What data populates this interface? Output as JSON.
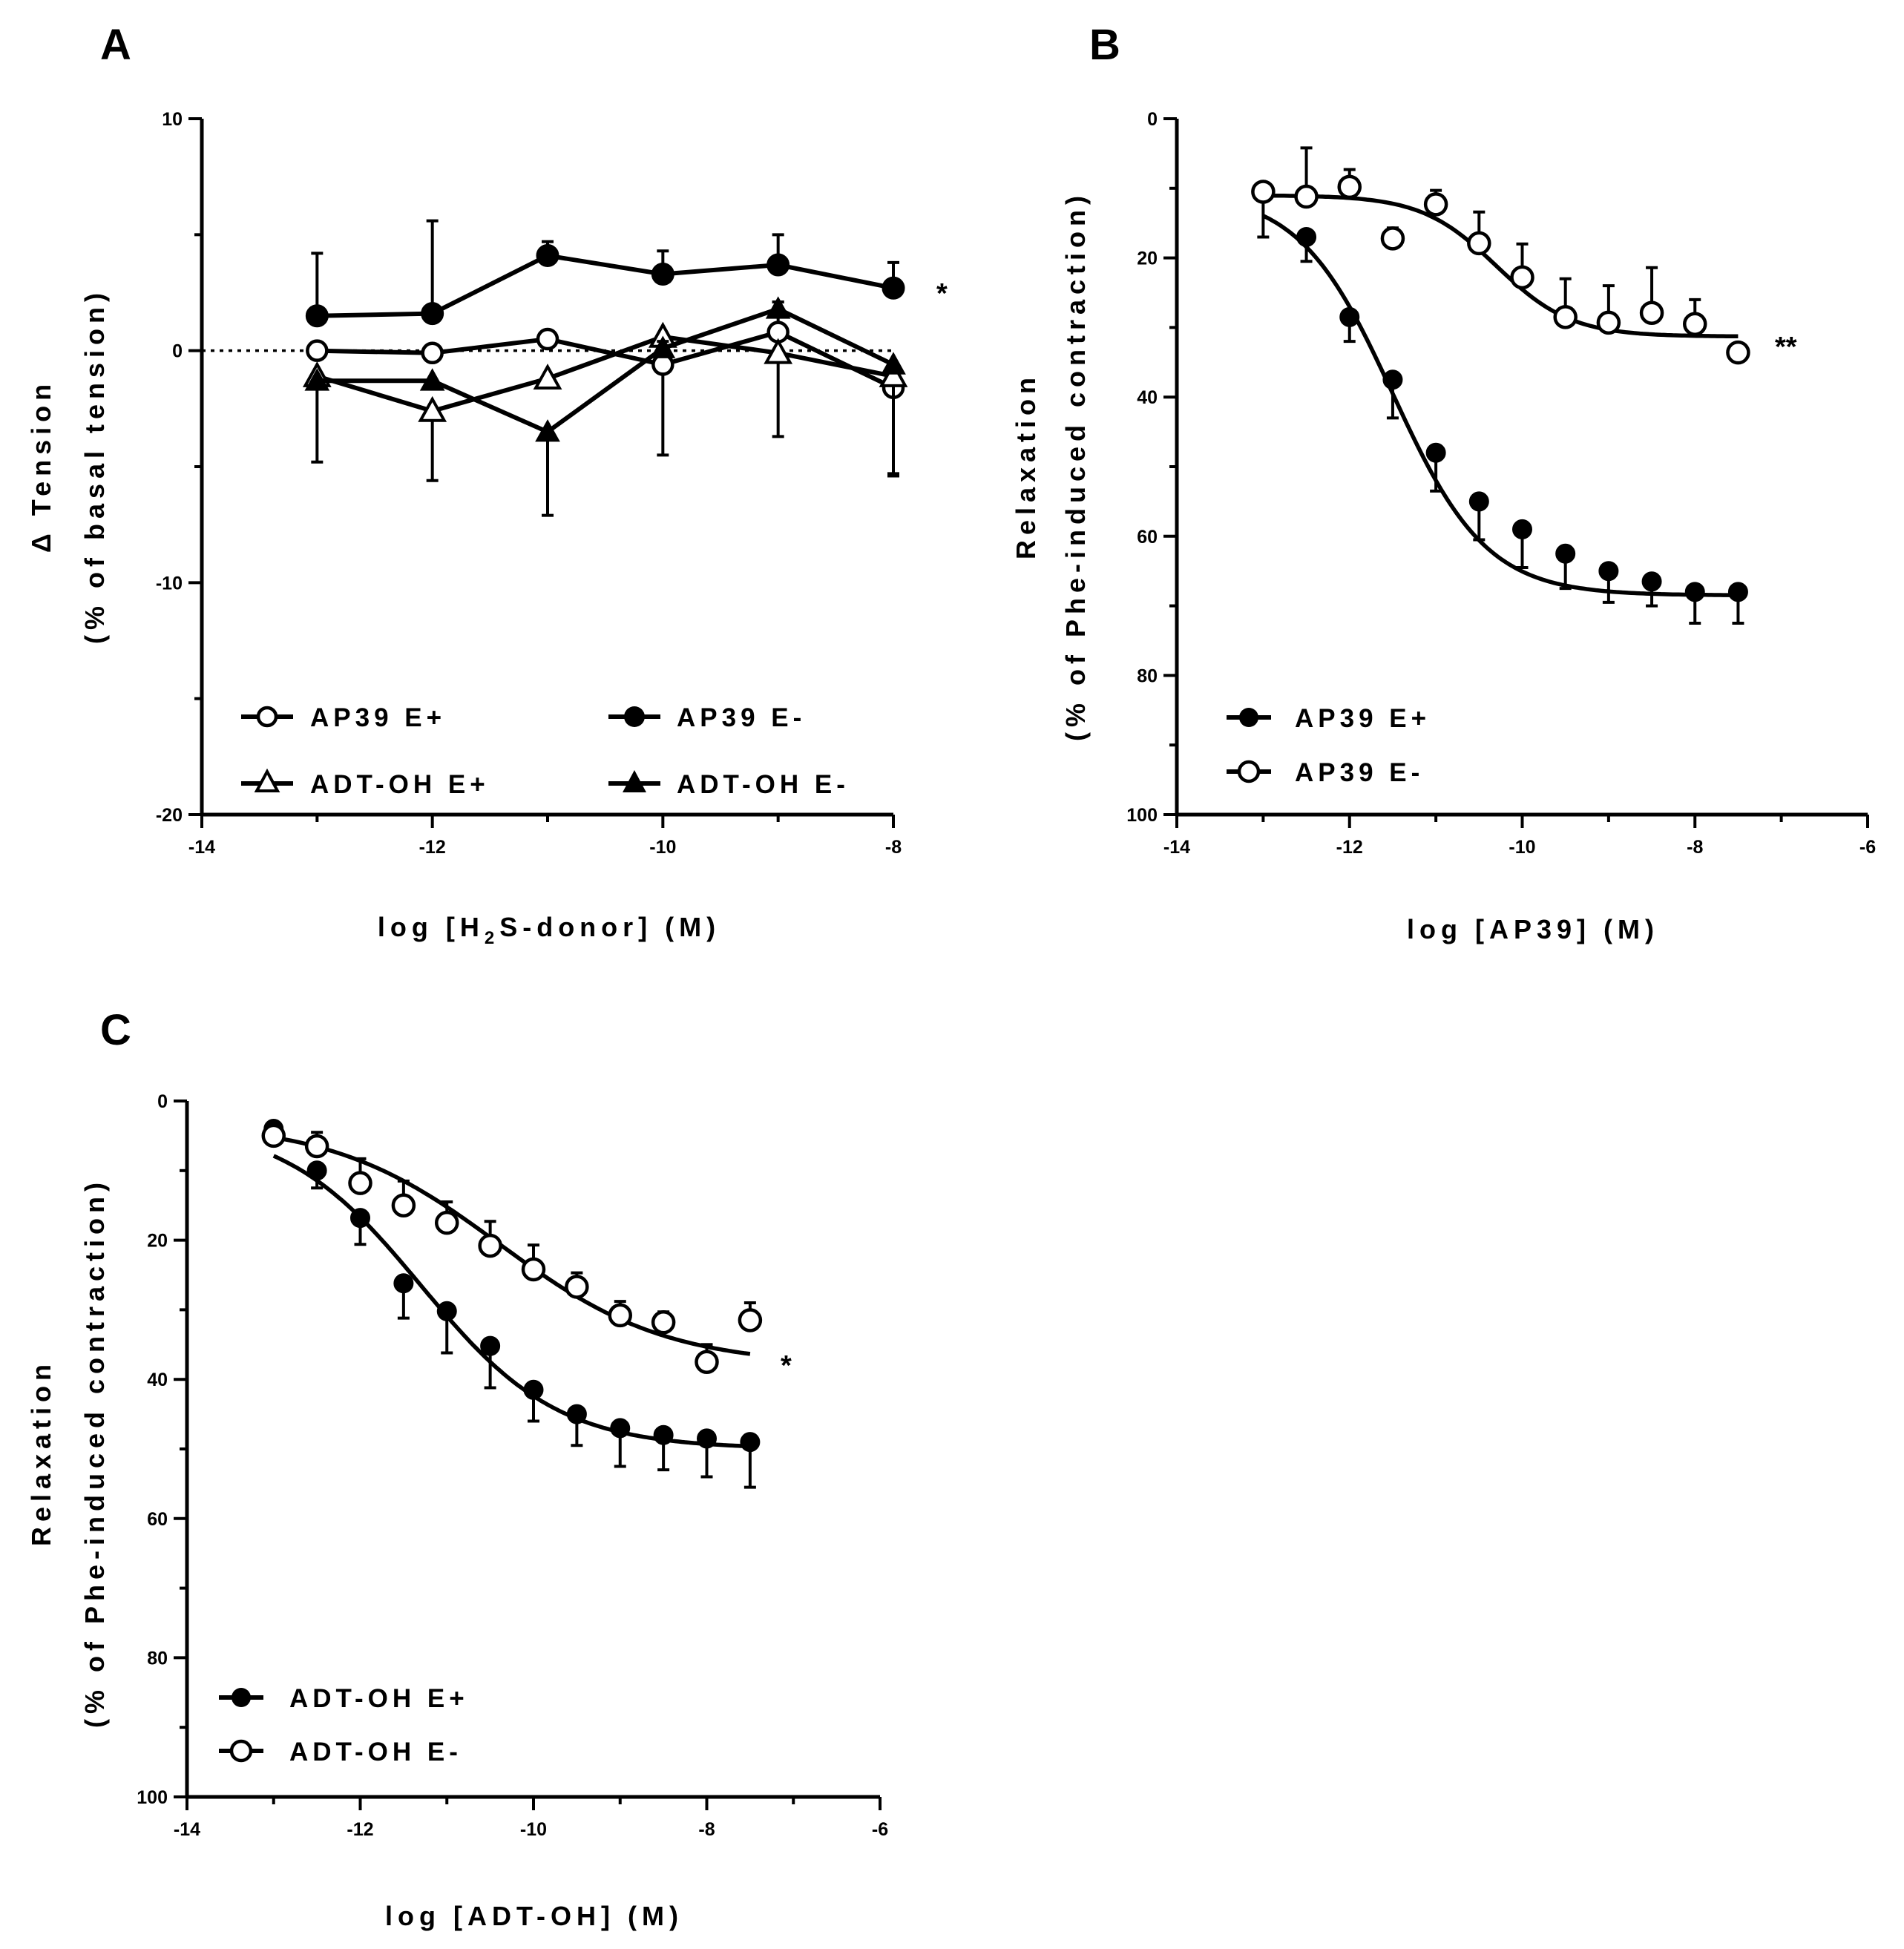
{
  "chart_data": [
    {
      "panel": "A",
      "type": "line",
      "xlabel": "log [H2S-donor] (M)",
      "xlabel_parts": {
        "pre": "log [H",
        "sub": "2",
        "post": "S-donor] (M)"
      },
      "ylabel_line1": "Δ Tension",
      "ylabel_line2": "(% of basal tension)",
      "xlim": [
        -14,
        -8
      ],
      "ylim": [
        -20,
        10
      ],
      "x_ticks": [
        "-14",
        "-12",
        "-10",
        "-8"
      ],
      "y_ticks": [
        "10",
        "0",
        "-10",
        "-20"
      ],
      "reference_line": 0,
      "annotation": "*",
      "series": [
        {
          "name": "AP39 E+",
          "marker": "circle",
          "filled": false,
          "x": [
            -13,
            -12,
            -11,
            -10,
            -9,
            -8
          ],
          "y": [
            0.0,
            -0.1,
            0.5,
            -0.6,
            0.8,
            -1.6
          ],
          "err": [
            0.3,
            0.3,
            0.3,
            3.9,
            1.3,
            3.7
          ]
        },
        {
          "name": "AP39 E-",
          "marker": "circle",
          "filled": true,
          "x": [
            -13,
            -12,
            -11,
            -10,
            -9,
            -8
          ],
          "y": [
            1.5,
            1.6,
            4.1,
            3.3,
            3.7,
            2.7
          ],
          "err": [
            2.7,
            4.0,
            0.6,
            1.0,
            1.3,
            1.1
          ]
        },
        {
          "name": "ADT-OH E+",
          "marker": "triangle",
          "filled": false,
          "x": [
            -13,
            -12,
            -11,
            -10,
            -9,
            -8
          ],
          "y": [
            -1.1,
            -2.6,
            -1.2,
            0.6,
            -0.1,
            -1.1
          ],
          "err": [
            3.7,
            3.0,
            0.3,
            0.3,
            3.6,
            4.3
          ]
        },
        {
          "name": "ADT-OH E-",
          "marker": "triangle",
          "filled": true,
          "x": [
            -13,
            -12,
            -11,
            -10,
            -9,
            -8
          ],
          "y": [
            -1.3,
            -1.3,
            -3.5,
            0.1,
            1.8,
            -0.6
          ],
          "err": [
            0.3,
            0.3,
            3.6,
            0.3,
            0.3,
            0.3
          ]
        }
      ],
      "legend": [
        "AP39 E+",
        "AP39 E-",
        "ADT-OH E+",
        "ADT-OH E-"
      ]
    },
    {
      "panel": "B",
      "type": "scatter",
      "xlabel": "log [AP39] (M)",
      "ylabel_line1": "Relaxation",
      "ylabel_line2": "(% of Phe-induced contraction)",
      "xlim": [
        -14,
        -6
      ],
      "ylim": [
        0,
        100
      ],
      "y_inverted": true,
      "x_ticks": [
        "-14",
        "-12",
        "-10",
        "-8",
        "-6"
      ],
      "y_ticks": [
        "0",
        "20",
        "40",
        "60",
        "80",
        "100"
      ],
      "annotation": "**",
      "series": [
        {
          "name": "AP39 E+",
          "marker": "circle",
          "filled": true,
          "x": [
            -13,
            -12.5,
            -12,
            -11.5,
            -11,
            -10.5,
            -10,
            -9.5,
            -9,
            -8.5,
            -8,
            -7.5
          ],
          "y": [
            10.5,
            17,
            28.5,
            37.5,
            48,
            55,
            59,
            62.5,
            65,
            66.5,
            68,
            68
          ],
          "err": [
            6.5,
            3.5,
            3.5,
            5.5,
            5.5,
            5.5,
            5.5,
            5,
            4.5,
            3.5,
            4.5,
            4.5
          ],
          "fit": {
            "bottom": 10.5,
            "top": 68.5,
            "logEC50": -11.5,
            "hill": 0.8
          }
        },
        {
          "name": "AP39 E-",
          "marker": "circle",
          "filled": false,
          "x": [
            -13,
            -12.5,
            -12,
            -11.5,
            -11,
            -10.5,
            -10,
            -9.5,
            -9,
            -8.5,
            -8,
            -7.5
          ],
          "y": [
            10.5,
            11.2,
            9.8,
            17.2,
            12.3,
            17.9,
            22.8,
            28.5,
            29.3,
            27.9,
            29.5,
            33.6
          ],
          "err": [
            0.8,
            7,
            2.5,
            1.5,
            2,
            4.5,
            4.8,
            5.5,
            5.3,
            6.5,
            3.5,
            0.8
          ],
          "fit": {
            "bottom": 11,
            "top": 31.3,
            "logEC50": -10.3,
            "hill": 1.0
          }
        }
      ],
      "legend": [
        "AP39 E+",
        "AP39 E-"
      ]
    },
    {
      "panel": "C",
      "type": "scatter",
      "xlabel": "log [ADT-OH] (M)",
      "ylabel_line1": "Relaxation",
      "ylabel_line2": "(% of Phe-induced contraction)",
      "xlim": [
        -14,
        -6
      ],
      "ylim": [
        0,
        100
      ],
      "y_inverted": true,
      "x_ticks": [
        "-14",
        "-12",
        "-10",
        "-8",
        "-6"
      ],
      "y_ticks": [
        "0",
        "20",
        "40",
        "60",
        "80",
        "100"
      ],
      "annotation": "*",
      "series": [
        {
          "name": "ADT-OH E+",
          "marker": "circle",
          "filled": true,
          "x": [
            -13,
            -12.5,
            -12,
            -11.5,
            -11,
            -10.5,
            -10,
            -9.5,
            -9,
            -8.5,
            -8,
            -7.5
          ],
          "y": [
            4,
            10,
            16.8,
            26.2,
            30.2,
            35.2,
            41.5,
            45,
            47,
            48,
            48.5,
            49
          ],
          "err": [
            0.5,
            2.5,
            3.8,
            5,
            6,
            6,
            4.5,
            4.5,
            5.5,
            5,
            5.5,
            6.5
          ],
          "fit": {
            "bottom": 3,
            "top": 50,
            "logEC50": -11.3,
            "hill": 0.55
          }
        },
        {
          "name": "ADT-OH E-",
          "marker": "circle",
          "filled": false,
          "x": [
            -13,
            -12.5,
            -12,
            -11.5,
            -11,
            -10.5,
            -10,
            -9.5,
            -9,
            -8.5,
            -8,
            -7.5
          ],
          "y": [
            5,
            6.5,
            11.8,
            15,
            17.5,
            20.8,
            24.2,
            26.7,
            30.8,
            31.8,
            37.5,
            31.5
          ],
          "err": [
            1,
            2,
            3.5,
            3.5,
            3,
            3.5,
            3.5,
            2,
            2,
            1.5,
            2.5,
            2.5
          ],
          "fit": {
            "bottom": 3,
            "top": 38,
            "logEC50": -10.4,
            "hill": 0.45
          }
        }
      ],
      "legend": [
        "ADT-OH E+",
        "ADT-OH E-"
      ]
    }
  ]
}
